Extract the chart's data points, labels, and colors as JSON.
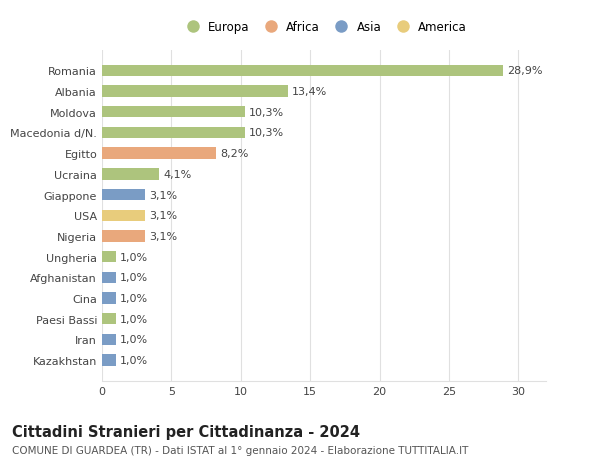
{
  "countries": [
    "Romania",
    "Albania",
    "Moldova",
    "Macedonia d/N.",
    "Egitto",
    "Ucraina",
    "Giappone",
    "USA",
    "Nigeria",
    "Ungheria",
    "Afghanistan",
    "Cina",
    "Paesi Bassi",
    "Iran",
    "Kazakhstan"
  ],
  "values": [
    28.9,
    13.4,
    10.3,
    10.3,
    8.2,
    4.1,
    3.1,
    3.1,
    3.1,
    1.0,
    1.0,
    1.0,
    1.0,
    1.0,
    1.0
  ],
  "labels": [
    "28,9%",
    "13,4%",
    "10,3%",
    "10,3%",
    "8,2%",
    "4,1%",
    "3,1%",
    "3,1%",
    "3,1%",
    "1,0%",
    "1,0%",
    "1,0%",
    "1,0%",
    "1,0%",
    "1,0%"
  ],
  "colors": [
    "#adc47d",
    "#adc47d",
    "#adc47d",
    "#adc47d",
    "#e9a87c",
    "#adc47d",
    "#7a9cc5",
    "#e8cc7c",
    "#e9a87c",
    "#adc47d",
    "#7a9cc5",
    "#7a9cc5",
    "#adc47d",
    "#7a9cc5",
    "#7a9cc5"
  ],
  "legend_labels": [
    "Europa",
    "Africa",
    "Asia",
    "America"
  ],
  "legend_colors": [
    "#adc47d",
    "#e9a87c",
    "#7a9cc5",
    "#e8cc7c"
  ],
  "title": "Cittadini Stranieri per Cittadinanza - 2024",
  "subtitle": "COMUNE DI GUARDEA (TR) - Dati ISTAT al 1° gennaio 2024 - Elaborazione TUTTITALIA.IT",
  "xlim": [
    0,
    32
  ],
  "xticks": [
    0,
    5,
    10,
    15,
    20,
    25,
    30
  ],
  "background_color": "#ffffff",
  "grid_color": "#e0e0e0",
  "bar_height": 0.55,
  "label_fontsize": 8,
  "tick_fontsize": 8,
  "title_fontsize": 10.5,
  "subtitle_fontsize": 7.5
}
